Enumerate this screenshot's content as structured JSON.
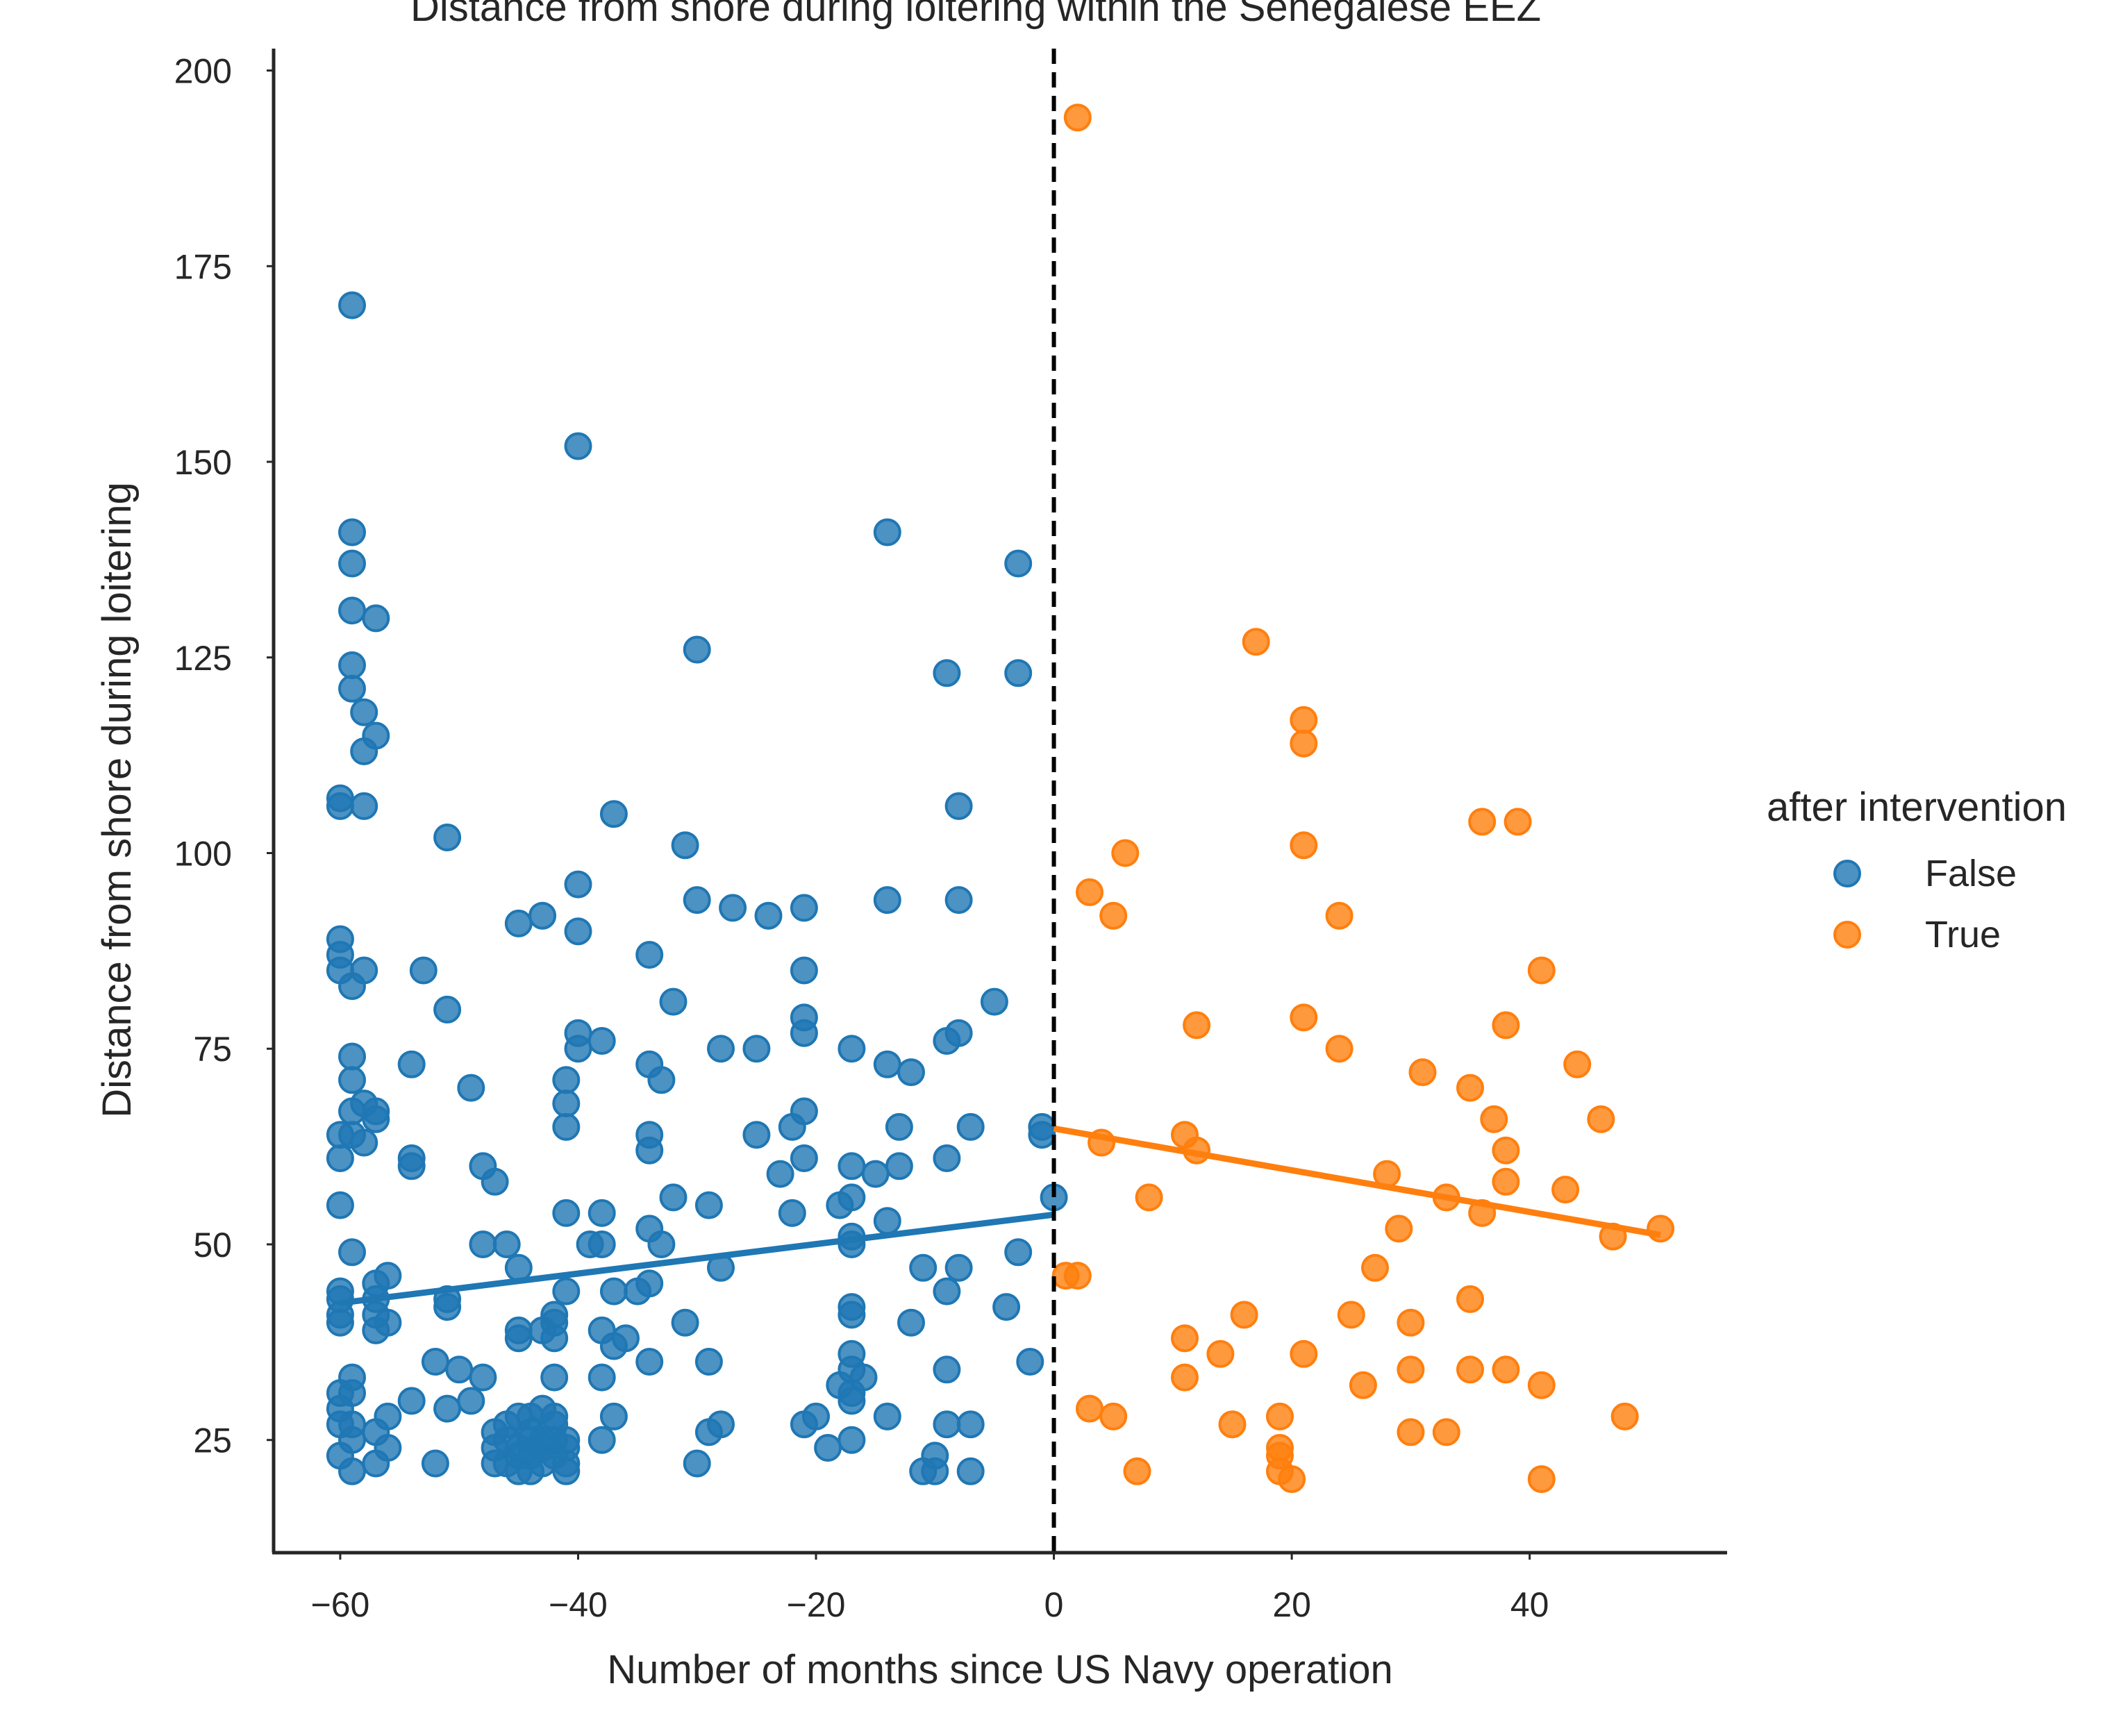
{
  "chart_data": {
    "type": "scatter",
    "title": "Distance from shore during loitering within the Senegalese EEZ",
    "xlabel": "Number of months since US Navy operation",
    "ylabel": "Distance from shore during loitering",
    "xlim": [
      -65.6,
      56.6
    ],
    "ylim": [
      10.6,
      202.8
    ],
    "xticks": [
      -60,
      -40,
      -20,
      0,
      20,
      40
    ],
    "xtick_labels": [
      "−60",
      "−40",
      "−20",
      "0",
      "20",
      "40"
    ],
    "yticks": [
      25,
      50,
      75,
      100,
      125,
      150,
      175,
      200
    ],
    "ytick_labels": [
      "25",
      "50",
      "75",
      "100",
      "125",
      "150",
      "175",
      "200"
    ],
    "grid": false,
    "intervention_line_x": 0,
    "legend": {
      "title": "after intervention",
      "placement": "right",
      "entries": [
        "False",
        "True"
      ]
    },
    "colors": {
      "False": "#1f77b4",
      "True": "#ff7f0e",
      "vline": "#000000",
      "axes": "#262626"
    },
    "series": [
      {
        "name": "False",
        "regression": {
          "x": [
            -60,
            0
          ],
          "y": [
            42.5,
            53.8
          ]
        },
        "points": [
          [
            -59,
            170
          ],
          [
            -40,
            152
          ],
          [
            -59,
            141
          ],
          [
            -59,
            137
          ],
          [
            -59,
            131
          ],
          [
            -57,
            130
          ],
          [
            -59,
            124
          ],
          [
            -59,
            121
          ],
          [
            -58,
            118
          ],
          [
            -57,
            115
          ],
          [
            -58,
            113
          ],
          [
            -60,
            107
          ],
          [
            -60,
            106
          ],
          [
            -58,
            106
          ],
          [
            -60,
            89
          ],
          [
            -60,
            87
          ],
          [
            -60,
            85
          ],
          [
            -58,
            85
          ],
          [
            -59,
            83
          ],
          [
            -59,
            74
          ],
          [
            -59,
            71
          ],
          [
            -59,
            67
          ],
          [
            -58,
            68
          ],
          [
            -57,
            67
          ],
          [
            -57,
            66
          ],
          [
            -60,
            64
          ],
          [
            -59,
            64
          ],
          [
            -58,
            63
          ],
          [
            -60,
            61
          ],
          [
            -60,
            55
          ],
          [
            -59,
            49
          ],
          [
            -56,
            46
          ],
          [
            -57,
            45
          ],
          [
            -60,
            44
          ],
          [
            -60,
            43
          ],
          [
            -57,
            43
          ],
          [
            -60,
            41
          ],
          [
            -60,
            40
          ],
          [
            -57,
            41
          ],
          [
            -56,
            40
          ],
          [
            -57,
            39
          ],
          [
            -59,
            33
          ],
          [
            -60,
            31
          ],
          [
            -59,
            31
          ],
          [
            -60,
            29
          ],
          [
            -60,
            27
          ],
          [
            -59,
            27
          ],
          [
            -56,
            28
          ],
          [
            -57,
            26
          ],
          [
            -59,
            25
          ],
          [
            -56,
            24
          ],
          [
            -60,
            23
          ],
          [
            -57,
            22
          ],
          [
            -59,
            21
          ],
          [
            -51,
            102
          ],
          [
            -53,
            85
          ],
          [
            -51,
            80
          ],
          [
            -54,
            73
          ],
          [
            -54,
            61
          ],
          [
            -54,
            60
          ],
          [
            -49,
            70
          ],
          [
            -48,
            60
          ],
          [
            -47,
            58
          ],
          [
            -48,
            50
          ],
          [
            -46,
            50
          ],
          [
            -45,
            47
          ],
          [
            -51,
            43
          ],
          [
            -51,
            42
          ],
          [
            -52,
            35
          ],
          [
            -50,
            34
          ],
          [
            -49,
            30
          ],
          [
            -48,
            33
          ],
          [
            -51,
            29
          ],
          [
            -54,
            30
          ],
          [
            -52,
            22
          ],
          [
            -45,
            91
          ],
          [
            -43,
            92
          ],
          [
            -40,
            96
          ],
          [
            -40,
            90
          ],
          [
            -40,
            77
          ],
          [
            -40,
            75
          ],
          [
            -38,
            76
          ],
          [
            -41,
            71
          ],
          [
            -41,
            68
          ],
          [
            -41,
            65
          ],
          [
            -41,
            54
          ],
          [
            -39,
            50
          ],
          [
            -41,
            44
          ],
          [
            -42,
            41
          ],
          [
            -42,
            40
          ],
          [
            -42,
            38
          ],
          [
            -43,
            39
          ],
          [
            -45,
            39
          ],
          [
            -45,
            38
          ],
          [
            -42,
            33
          ],
          [
            -38,
            54
          ],
          [
            -38,
            50
          ],
          [
            -37,
            44
          ],
          [
            -36,
            38
          ],
          [
            -38,
            39
          ],
          [
            -37,
            37
          ],
          [
            -38,
            33
          ],
          [
            -37,
            28
          ],
          [
            -38,
            25
          ],
          [
            -37,
            105
          ],
          [
            -34,
            87
          ],
          [
            -34,
            73
          ],
          [
            -33,
            71
          ],
          [
            -34,
            64
          ],
          [
            -34,
            62
          ],
          [
            -32,
            81
          ],
          [
            -31,
            101
          ],
          [
            -30,
            94
          ],
          [
            -30,
            126
          ],
          [
            -32,
            56
          ],
          [
            -34,
            52
          ],
          [
            -33,
            50
          ],
          [
            -34,
            45
          ],
          [
            -35,
            44
          ],
          [
            -29,
            55
          ],
          [
            -28,
            47
          ],
          [
            -31,
            40
          ],
          [
            -34,
            35
          ],
          [
            -29,
            35
          ],
          [
            -28,
            75
          ],
          [
            -27,
            93
          ],
          [
            -25,
            75
          ],
          [
            -24,
            92
          ],
          [
            -25,
            64
          ],
          [
            -22,
            65
          ],
          [
            -23,
            59
          ],
          [
            -21,
            61
          ],
          [
            -22,
            54
          ],
          [
            -29,
            26
          ],
          [
            -28,
            27
          ],
          [
            -30,
            22
          ],
          [
            -21,
            93
          ],
          [
            -21,
            85
          ],
          [
            -21,
            79
          ],
          [
            -21,
            77
          ],
          [
            -21,
            67
          ],
          [
            -17,
            75
          ],
          [
            -17,
            60
          ],
          [
            -17,
            56
          ],
          [
            -17,
            51
          ],
          [
            -17,
            50
          ],
          [
            -18,
            55
          ],
          [
            -17,
            42
          ],
          [
            -17,
            41
          ],
          [
            -17,
            36
          ],
          [
            -17,
            34
          ],
          [
            -17,
            31
          ],
          [
            -17,
            30
          ],
          [
            -18,
            32
          ],
          [
            -16,
            33
          ],
          [
            -20,
            28
          ],
          [
            -21,
            27
          ],
          [
            -19,
            24
          ],
          [
            -17,
            25
          ],
          [
            -14,
            141
          ],
          [
            -14,
            94
          ],
          [
            -14,
            73
          ],
          [
            -12,
            72
          ],
          [
            -13,
            65
          ],
          [
            -13,
            60
          ],
          [
            -15,
            59
          ],
          [
            -14,
            53
          ],
          [
            -11,
            47
          ],
          [
            -12,
            40
          ],
          [
            -14,
            28
          ],
          [
            -9,
            123
          ],
          [
            -8,
            106
          ],
          [
            -8,
            94
          ],
          [
            -8,
            77
          ],
          [
            -9,
            76
          ],
          [
            -7,
            65
          ],
          [
            -9,
            61
          ],
          [
            -8,
            47
          ],
          [
            -9,
            44
          ],
          [
            -9,
            34
          ],
          [
            -9,
            27
          ],
          [
            -7,
            27
          ],
          [
            -10,
            23
          ],
          [
            -10,
            21
          ],
          [
            -11,
            21
          ],
          [
            -7,
            21
          ],
          [
            -5,
            81
          ],
          [
            -3,
            137
          ],
          [
            -3,
            123
          ],
          [
            -1,
            65
          ],
          [
            -1,
            64
          ],
          [
            0,
            56
          ],
          [
            -3,
            49
          ],
          [
            -4,
            42
          ],
          [
            -2,
            35
          ],
          [
            -47,
            26
          ],
          [
            -46,
            25
          ],
          [
            -45,
            24
          ],
          [
            -44,
            26
          ],
          [
            -43,
            25
          ],
          [
            -42,
            27
          ],
          [
            -41,
            24
          ],
          [
            -46,
            22
          ],
          [
            -44,
            23
          ],
          [
            -43,
            22
          ],
          [
            -42,
            23
          ],
          [
            -41,
            22
          ],
          [
            -45,
            21
          ],
          [
            -41,
            21
          ],
          [
            -47,
            22
          ],
          [
            -44,
            28
          ],
          [
            -43,
            29
          ],
          [
            -42,
            28
          ],
          [
            -45,
            28
          ],
          [
            -46,
            27
          ],
          [
            -47,
            24
          ],
          [
            -44,
            25
          ],
          [
            -43,
            24
          ],
          [
            -42,
            25
          ],
          [
            -41,
            25
          ],
          [
            -45,
            23
          ],
          [
            -44,
            21
          ]
        ]
      },
      {
        "name": "True",
        "regression": {
          "x": [
            0,
            51
          ],
          "y": [
            64.8,
            51.2
          ]
        },
        "points": [
          [
            2,
            194
          ],
          [
            17,
            127
          ],
          [
            21,
            117
          ],
          [
            21,
            114
          ],
          [
            21,
            101
          ],
          [
            6,
            100
          ],
          [
            3,
            95
          ],
          [
            5,
            92
          ],
          [
            24,
            92
          ],
          [
            36,
            104
          ],
          [
            39,
            104
          ],
          [
            41,
            85
          ],
          [
            12,
            78
          ],
          [
            21,
            79
          ],
          [
            38,
            78
          ],
          [
            24,
            75
          ],
          [
            44,
            73
          ],
          [
            31,
            72
          ],
          [
            35,
            70
          ],
          [
            37,
            66
          ],
          [
            46,
            66
          ],
          [
            11,
            64
          ],
          [
            4,
            63
          ],
          [
            12,
            62
          ],
          [
            38,
            62
          ],
          [
            28,
            59
          ],
          [
            43,
            57
          ],
          [
            38,
            58
          ],
          [
            8,
            56
          ],
          [
            33,
            56
          ],
          [
            36,
            54
          ],
          [
            29,
            52
          ],
          [
            51,
            52
          ],
          [
            47,
            51
          ],
          [
            27,
            47
          ],
          [
            1,
            46
          ],
          [
            2,
            46
          ],
          [
            16,
            41
          ],
          [
            25,
            41
          ],
          [
            35,
            43
          ],
          [
            30,
            40
          ],
          [
            11,
            38
          ],
          [
            14,
            36
          ],
          [
            21,
            36
          ],
          [
            11,
            33
          ],
          [
            26,
            32
          ],
          [
            30,
            34
          ],
          [
            35,
            34
          ],
          [
            38,
            34
          ],
          [
            41,
            32
          ],
          [
            3,
            29
          ],
          [
            5,
            28
          ],
          [
            15,
            27
          ],
          [
            19,
            28
          ],
          [
            48,
            28
          ],
          [
            30,
            26
          ],
          [
            33,
            26
          ],
          [
            19,
            24
          ],
          [
            19,
            23
          ],
          [
            19,
            21
          ],
          [
            7,
            21
          ],
          [
            20,
            20
          ],
          [
            41,
            20
          ]
        ]
      }
    ]
  }
}
